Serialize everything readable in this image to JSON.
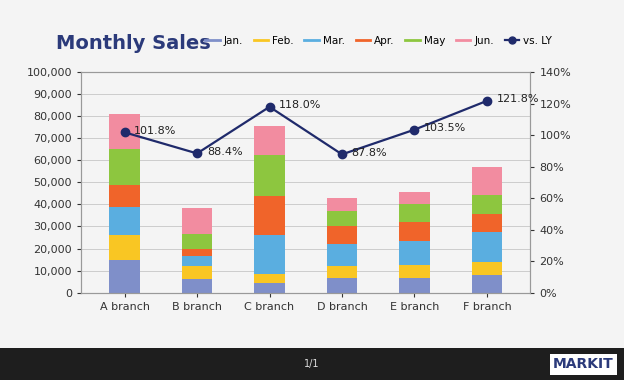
{
  "chart_data": {
    "type": "bar",
    "title": "Monthly Sales",
    "categories": [
      "A branch",
      "B branch",
      "C branch",
      "D branch",
      "E branch",
      "F branch"
    ],
    "stacked": true,
    "grid": true,
    "legend": "upper right",
    "series": [
      {
        "name": "Jan.",
        "color": "#7f8fc9",
        "values": [
          15000,
          6000,
          4500,
          6500,
          6500,
          8000
        ]
      },
      {
        "name": "Feb.",
        "color": "#f9c623",
        "values": [
          11000,
          6000,
          4000,
          5500,
          6000,
          6000
        ]
      },
      {
        "name": "Mar.",
        "color": "#5aaee0",
        "values": [
          13000,
          4500,
          17500,
          10000,
          11000,
          13500
        ]
      },
      {
        "name": "Apr.",
        "color": "#f0642a",
        "values": [
          10000,
          3500,
          18000,
          8000,
          8500,
          8000
        ]
      },
      {
        "name": "May",
        "color": "#8dc63f",
        "values": [
          16000,
          6500,
          18500,
          7000,
          8000,
          9000
        ]
      },
      {
        "name": "Jun.",
        "color": "#f28ca0",
        "values": [
          16000,
          12000,
          13000,
          6000,
          5500,
          12500
        ]
      },
      {
        "name": "vs. LY",
        "type": "line",
        "axis": "y2",
        "color": "#1f2a6b",
        "marker": "o",
        "line_style": "solid",
        "data_labels": true,
        "values": [
          101.8,
          88.4,
          118.0,
          87.8,
          103.5,
          121.8
        ],
        "value_labels": [
          "101.8%",
          "88.4%",
          "118.0%",
          "87.8%",
          "103.5%",
          "121.8%"
        ]
      }
    ],
    "ylim": [
      0,
      100000
    ],
    "yticks": [
      0,
      {
        "value": 10000,
        "label": "10,000"
      },
      {
        "value": 20000,
        "label": "20,000"
      },
      {
        "value": 30000,
        "label": "30,000"
      },
      {
        "value": 40000,
        "label": "40,000"
      },
      {
        "value": 50000,
        "label": "50,000"
      },
      {
        "value": 60000,
        "label": "60,000"
      },
      {
        "value": 70000,
        "label": "70,000"
      },
      {
        "value": 80000,
        "label": "80,000"
      },
      {
        "value": 90000,
        "label": "90,000"
      },
      {
        "value": 100000,
        "label": "100,000"
      }
    ],
    "y2lim": [
      0,
      140
    ],
    "y2ticks": [
      {
        "value": 0,
        "label": "0%"
      },
      {
        "value": 20,
        "label": "20%"
      },
      {
        "value": 40,
        "label": "40%"
      },
      {
        "value": 60,
        "label": "60%"
      },
      {
        "value": 80,
        "label": "80%"
      },
      {
        "value": 100,
        "label": "100%"
      },
      {
        "value": 120,
        "label": "120%"
      },
      {
        "value": 140,
        "label": "140%"
      }
    ],
    "annotations": [
      "1/1",
      "MARKIT"
    ]
  }
}
